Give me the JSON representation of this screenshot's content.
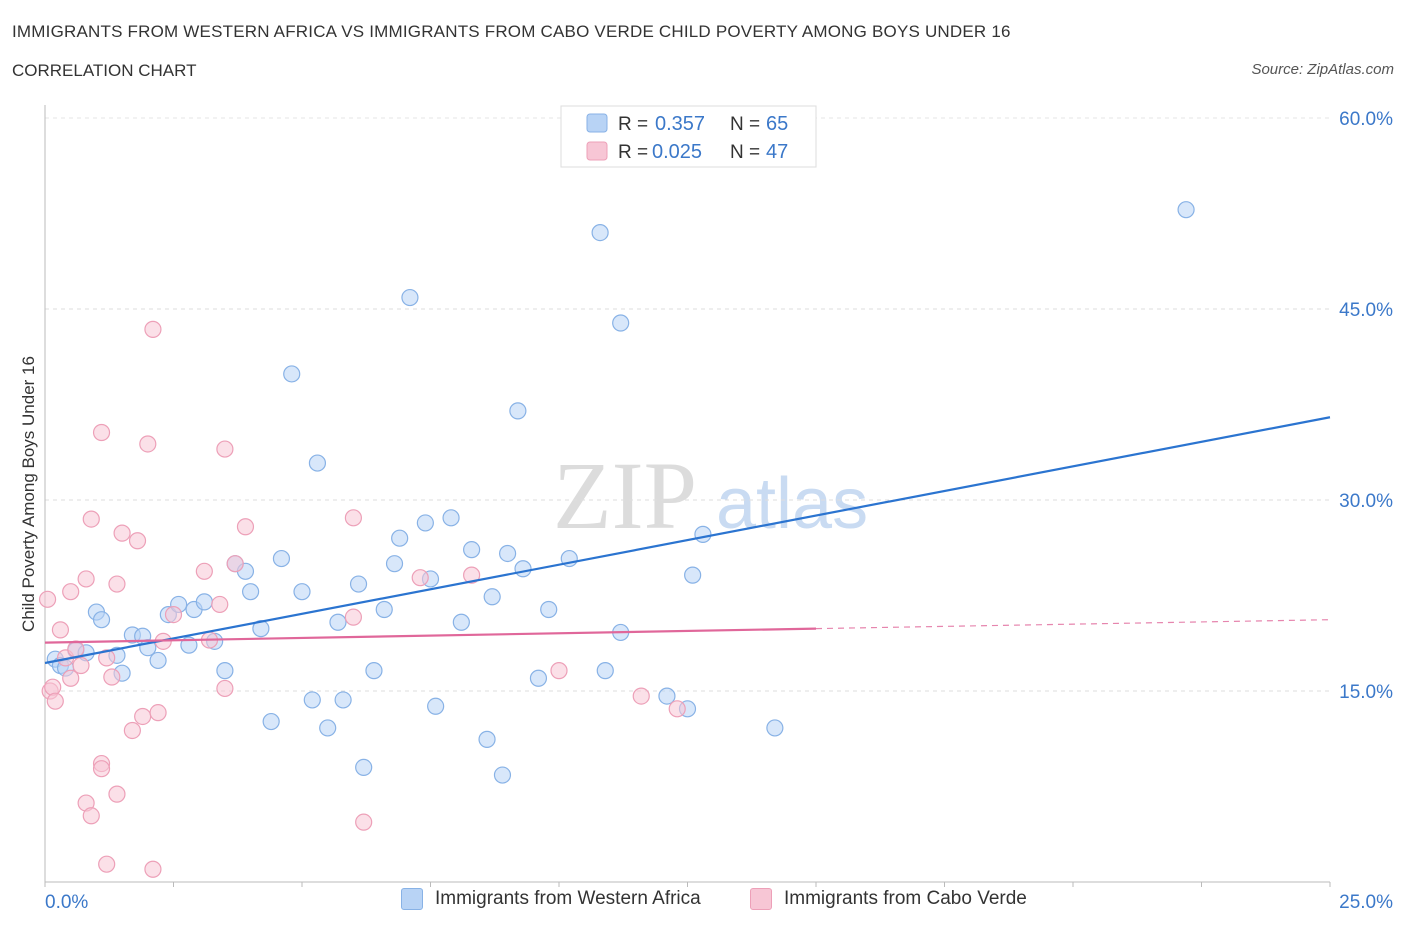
{
  "header": {
    "title": "IMMIGRANTS FROM WESTERN AFRICA VS IMMIGRANTS FROM CABO VERDE CHILD POVERTY AMONG BOYS UNDER 16",
    "subtitle": "CORRELATION CHART",
    "source": "Source: ZipAtlas.com"
  },
  "colors": {
    "blue_fill": "#b8d3f5",
    "blue_stroke": "#88b2e6",
    "blue_line": "#2b74d0",
    "pink_fill": "#f7c6d5",
    "pink_stroke": "#eda0b8",
    "pink_line": "#e0679a",
    "value_text": "#3b78c9"
  },
  "stats_legend": [
    {
      "r_label": "R =",
      "r_value": "0.357",
      "n_label": "N =",
      "n_value": "65"
    },
    {
      "r_label": "R =",
      "r_value": "0.025",
      "n_label": "N =",
      "n_value": "47"
    }
  ],
  "watermark": {
    "zip": "ZIP",
    "atlas": "atlas"
  },
  "chart_data": {
    "type": "scatter",
    "title": "IMMIGRANTS FROM WESTERN AFRICA VS IMMIGRANTS FROM CABO VERDE CHILD POVERTY AMONG BOYS UNDER 16",
    "xlabel": "",
    "ylabel": "Child Poverty Among Boys Under 16",
    "xlim": [
      0,
      25
    ],
    "ylim": [
      0,
      60
    ],
    "x_tick_labels": [
      "0.0%",
      "25.0%"
    ],
    "y_tick_labels": [
      "15.0%",
      "30.0%",
      "45.0%",
      "60.0%"
    ],
    "y_ticks": [
      15,
      30,
      45,
      60
    ],
    "grid": true,
    "legend_position": "top-center",
    "series": [
      {
        "name": "Immigrants from Western Africa",
        "trend": {
          "x": [
            0,
            25
          ],
          "y": [
            17.2,
            36.5
          ]
        },
        "points": [
          [
            0.2,
            17.5
          ],
          [
            0.3,
            17.0
          ],
          [
            0.4,
            16.8
          ],
          [
            0.6,
            18.2
          ],
          [
            0.8,
            18.0
          ],
          [
            1.0,
            21.2
          ],
          [
            1.1,
            20.6
          ],
          [
            1.4,
            17.8
          ],
          [
            1.5,
            16.4
          ],
          [
            1.7,
            19.4
          ],
          [
            1.9,
            19.3
          ],
          [
            2.0,
            18.4
          ],
          [
            2.2,
            17.4
          ],
          [
            2.4,
            21.0
          ],
          [
            2.6,
            21.8
          ],
          [
            2.8,
            18.6
          ],
          [
            2.9,
            21.4
          ],
          [
            3.1,
            22.0
          ],
          [
            3.3,
            18.9
          ],
          [
            3.5,
            16.6
          ],
          [
            3.7,
            25.0
          ],
          [
            3.9,
            24.4
          ],
          [
            4.0,
            22.8
          ],
          [
            4.2,
            19.9
          ],
          [
            4.6,
            25.4
          ],
          [
            4.4,
            12.6
          ],
          [
            4.8,
            39.9
          ],
          [
            5.0,
            22.8
          ],
          [
            5.2,
            14.3
          ],
          [
            5.3,
            32.9
          ],
          [
            5.5,
            12.1
          ],
          [
            5.7,
            20.4
          ],
          [
            5.8,
            14.3
          ],
          [
            6.1,
            23.4
          ],
          [
            6.2,
            9.0
          ],
          [
            6.4,
            16.6
          ],
          [
            6.6,
            21.4
          ],
          [
            6.8,
            25.0
          ],
          [
            6.9,
            27.0
          ],
          [
            7.1,
            45.9
          ],
          [
            7.4,
            28.2
          ],
          [
            7.5,
            23.8
          ],
          [
            7.6,
            13.8
          ],
          [
            7.9,
            28.6
          ],
          [
            8.1,
            20.4
          ],
          [
            8.3,
            26.1
          ],
          [
            8.6,
            11.2
          ],
          [
            8.7,
            22.4
          ],
          [
            8.9,
            8.4
          ],
          [
            9.0,
            25.8
          ],
          [
            9.2,
            37.0
          ],
          [
            9.3,
            24.6
          ],
          [
            9.6,
            16.0
          ],
          [
            9.8,
            21.4
          ],
          [
            10.2,
            25.4
          ],
          [
            10.8,
            51.0
          ],
          [
            10.9,
            16.6
          ],
          [
            11.2,
            43.9
          ],
          [
            11.2,
            19.6
          ],
          [
            12.1,
            14.6
          ],
          [
            12.5,
            13.6
          ],
          [
            12.6,
            24.1
          ],
          [
            12.8,
            27.3
          ],
          [
            14.2,
            12.1
          ],
          [
            22.2,
            52.8
          ]
        ]
      },
      {
        "name": "Immigrants from Cabo Verde",
        "trend": {
          "x": [
            0,
            15
          ],
          "y": [
            18.8,
            19.9
          ]
        },
        "trend_extension": {
          "x": [
            15,
            25
          ],
          "y": [
            19.9,
            20.6
          ]
        },
        "points": [
          [
            0.05,
            22.2
          ],
          [
            0.1,
            15.0
          ],
          [
            0.15,
            15.3
          ],
          [
            0.2,
            14.2
          ],
          [
            0.3,
            19.8
          ],
          [
            0.4,
            17.6
          ],
          [
            0.5,
            16.0
          ],
          [
            0.5,
            22.8
          ],
          [
            0.6,
            18.3
          ],
          [
            0.7,
            17.0
          ],
          [
            0.8,
            6.2
          ],
          [
            0.8,
            23.8
          ],
          [
            0.9,
            5.2
          ],
          [
            0.9,
            28.5
          ],
          [
            1.1,
            35.3
          ],
          [
            1.2,
            1.4
          ],
          [
            1.1,
            9.3
          ],
          [
            1.1,
            8.9
          ],
          [
            1.2,
            17.6
          ],
          [
            1.3,
            16.1
          ],
          [
            1.4,
            23.4
          ],
          [
            1.4,
            6.9
          ],
          [
            1.5,
            27.4
          ],
          [
            1.7,
            11.9
          ],
          [
            1.8,
            26.8
          ],
          [
            1.9,
            13.0
          ],
          [
            2.0,
            34.4
          ],
          [
            2.1,
            43.4
          ],
          [
            2.1,
            1.0
          ],
          [
            2.2,
            13.3
          ],
          [
            2.3,
            18.9
          ],
          [
            2.5,
            21.0
          ],
          [
            3.1,
            24.4
          ],
          [
            3.2,
            19.0
          ],
          [
            3.4,
            21.8
          ],
          [
            3.5,
            34.0
          ],
          [
            3.5,
            15.2
          ],
          [
            3.7,
            25.0
          ],
          [
            3.9,
            27.9
          ],
          [
            6.0,
            28.6
          ],
          [
            6.0,
            20.8
          ],
          [
            6.2,
            4.7
          ],
          [
            7.3,
            23.9
          ],
          [
            8.3,
            24.1
          ],
          [
            10.0,
            16.6
          ],
          [
            11.6,
            14.6
          ],
          [
            12.3,
            13.6
          ]
        ]
      }
    ]
  },
  "bottom_legend": [
    {
      "label": "Immigrants from Western Africa"
    },
    {
      "label": "Immigrants from Cabo Verde"
    }
  ]
}
